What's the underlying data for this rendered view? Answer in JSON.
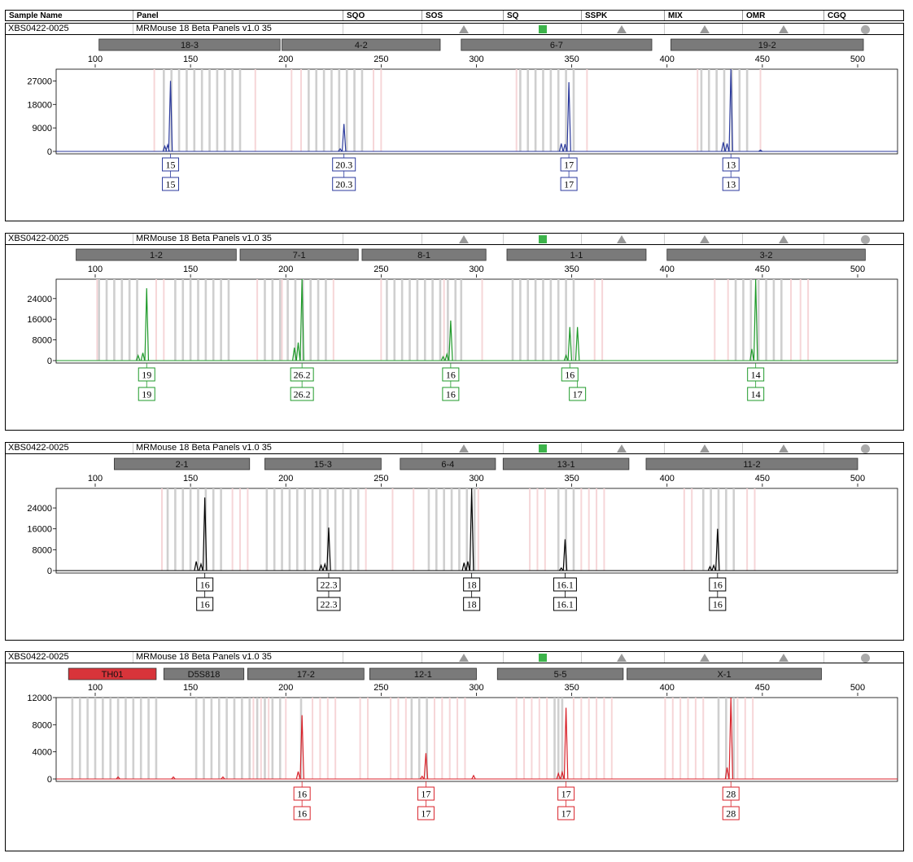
{
  "header": {
    "columns": [
      "Sample Name",
      "Panel",
      "SQO",
      "SOS",
      "SQ",
      "SSPK",
      "MIX",
      "OMR",
      "CGQ"
    ]
  },
  "flag_colors": {
    "triangle": "#999999",
    "square": "#3cb34a",
    "circle": "#aaaaaa"
  },
  "chart_data": [
    {
      "type": "line",
      "dye": "blue",
      "color": "#2b3a9c",
      "sample_name": "XBS0422-0025",
      "panel_name": "MRMouse 18 Beta  Panels  v1.0  35",
      "x_ticks": [
        100,
        150,
        200,
        250,
        300,
        350,
        400,
        450,
        500
      ],
      "xlim": [
        83,
        521
      ],
      "y_ticks": [
        0,
        9000,
        18000,
        27000
      ],
      "y_tick_labels": [
        "0",
        "9000",
        "18000",
        "27000"
      ],
      "ylim": [
        0,
        31500
      ],
      "markers": [
        {
          "label": "18-3",
          "start": 102,
          "end": 197,
          "highlight": false
        },
        {
          "label": "4-2",
          "start": 198,
          "end": 281,
          "highlight": false
        },
        {
          "label": "6-7",
          "start": 292,
          "end": 392,
          "highlight": false
        },
        {
          "label": "19-2",
          "start": 402,
          "end": 503,
          "highlight": false
        }
      ],
      "bins_gray": [
        136,
        140,
        144,
        148,
        152,
        156,
        160,
        164,
        168,
        172,
        176,
        212,
        216,
        220,
        224,
        228,
        232,
        236,
        240,
        323,
        327,
        331,
        335,
        339,
        343,
        347,
        351,
        418,
        422,
        426,
        430,
        434,
        438,
        442
      ],
      "bins_pink": [
        131,
        152,
        184,
        203,
        208,
        246,
        250,
        321,
        358,
        416,
        449
      ],
      "peaks": [
        {
          "x": 139.5,
          "h": 27000
        },
        {
          "x": 138,
          "h": 2500
        },
        {
          "x": 136.5,
          "h": 2000
        },
        {
          "x": 230.5,
          "h": 10500
        },
        {
          "x": 228.5,
          "h": 1000
        },
        {
          "x": 348.5,
          "h": 26500
        },
        {
          "x": 346.5,
          "h": 2800
        },
        {
          "x": 344.5,
          "h": 3000
        },
        {
          "x": 433.5,
          "h": 31500
        },
        {
          "x": 431.5,
          "h": 3000
        },
        {
          "x": 429.5,
          "h": 3500
        },
        {
          "x": 449,
          "h": 500
        }
      ],
      "calls": [
        {
          "x": 139.5,
          "allele1": "15",
          "allele2": "15",
          "x2": 139.5
        },
        {
          "x": 230.5,
          "allele1": "20.3",
          "allele2": "20.3",
          "x2": 230.5
        },
        {
          "x": 348.5,
          "allele1": "17",
          "allele2": "17",
          "x2": 348.5
        },
        {
          "x": 433.5,
          "allele1": "13",
          "allele2": "13",
          "x2": 433.5
        }
      ]
    },
    {
      "type": "line",
      "dye": "green",
      "color": "#1f9a2a",
      "sample_name": "XBS0422-0025",
      "panel_name": "MRMouse 18 Beta  Panels  v1.0  35",
      "x_ticks": [
        100,
        150,
        200,
        250,
        300,
        350,
        400,
        450,
        500
      ],
      "xlim": [
        83,
        521
      ],
      "y_ticks": [
        0,
        8000,
        16000,
        24000
      ],
      "y_tick_labels": [
        "0",
        "8000",
        "16000",
        "24000"
      ],
      "ylim": [
        0,
        31500
      ],
      "markers": [
        {
          "label": "1-2",
          "start": 90,
          "end": 174,
          "highlight": false
        },
        {
          "label": "7-1",
          "start": 176,
          "end": 238,
          "highlight": false
        },
        {
          "label": "8-1",
          "start": 240,
          "end": 305,
          "highlight": false
        },
        {
          "label": "1-1",
          "start": 316,
          "end": 389,
          "highlight": false
        },
        {
          "label": "3-2",
          "start": 400,
          "end": 504,
          "highlight": false
        }
      ],
      "bins_gray": [
        102,
        106,
        110,
        114,
        118,
        122,
        142,
        146,
        150,
        154,
        158,
        162,
        166,
        170,
        189,
        193,
        197,
        201,
        205,
        209,
        213,
        217,
        221,
        253,
        257,
        261,
        265,
        269,
        273,
        277,
        281,
        285,
        289,
        292,
        319,
        323,
        327,
        331,
        335,
        339,
        343,
        347,
        351,
        436,
        440,
        444,
        448,
        452,
        456,
        460
      ],
      "bins_pink": [
        101,
        132,
        136,
        185,
        198,
        225,
        250,
        283,
        303,
        362,
        366,
        425,
        432,
        465,
        470,
        474
      ],
      "peaks": [
        {
          "x": 127,
          "h": 28000
        },
        {
          "x": 125,
          "h": 3000
        },
        {
          "x": 122.5,
          "h": 2000
        },
        {
          "x": 208.5,
          "h": 31500
        },
        {
          "x": 206.5,
          "h": 7000
        },
        {
          "x": 204.5,
          "h": 5000
        },
        {
          "x": 286.5,
          "h": 15500
        },
        {
          "x": 284.5,
          "h": 2500
        },
        {
          "x": 282.5,
          "h": 1500
        },
        {
          "x": 349,
          "h": 13000
        },
        {
          "x": 353,
          "h": 13000
        },
        {
          "x": 347,
          "h": 2000
        },
        {
          "x": 446.5,
          "h": 31500
        },
        {
          "x": 444.5,
          "h": 4500
        }
      ],
      "calls": [
        {
          "x": 127,
          "allele1": "19",
          "allele2": "19",
          "x2": 127
        },
        {
          "x": 208.5,
          "allele1": "26.2",
          "allele2": "26.2",
          "x2": 208.5
        },
        {
          "x": 286.5,
          "allele1": "16",
          "allele2": "16",
          "x2": 286.5
        },
        {
          "x": 349,
          "allele1": "16",
          "allele2": "17",
          "x2": 353
        },
        {
          "x": 446.5,
          "allele1": "14",
          "allele2": "14",
          "x2": 446.5
        }
      ]
    },
    {
      "type": "line",
      "dye": "black",
      "color": "#000000",
      "sample_name": "XBS0422-0025",
      "panel_name": "MRMouse 18 Beta  Panels  v1.0  35",
      "x_ticks": [
        100,
        150,
        200,
        250,
        300,
        350,
        400,
        450,
        500
      ],
      "xlim": [
        83,
        521
      ],
      "y_ticks": [
        0,
        8000,
        16000,
        24000
      ],
      "y_tick_labels": [
        "0",
        "8000",
        "16000",
        "24000"
      ],
      "ylim": [
        0,
        31500
      ],
      "markers": [
        {
          "label": "2-1",
          "start": 110,
          "end": 181,
          "highlight": false
        },
        {
          "label": "15-3",
          "start": 189,
          "end": 250,
          "highlight": false
        },
        {
          "label": "6-4",
          "start": 260,
          "end": 310,
          "highlight": false
        },
        {
          "label": "13-1",
          "start": 314,
          "end": 380,
          "highlight": false
        },
        {
          "label": "11-2",
          "start": 389,
          "end": 500,
          "highlight": false
        }
      ],
      "bins_gray": [
        138,
        142,
        146,
        150,
        154,
        158,
        162,
        166,
        190,
        194,
        198,
        202,
        206,
        210,
        214,
        218,
        222,
        226,
        230,
        234,
        238,
        275,
        279,
        283,
        287,
        291,
        295,
        299,
        343,
        347,
        351,
        419,
        423,
        427,
        431,
        435
      ],
      "bins_pink": [
        135,
        172,
        176,
        180,
        214,
        242,
        256,
        267,
        301,
        328,
        332,
        336,
        355,
        359,
        363,
        367,
        409,
        413,
        442,
        446
      ],
      "peaks": [
        {
          "x": 157.5,
          "h": 28000
        },
        {
          "x": 155.5,
          "h": 2500
        },
        {
          "x": 153,
          "h": 3500
        },
        {
          "x": 222.5,
          "h": 16500
        },
        {
          "x": 220.5,
          "h": 2500
        },
        {
          "x": 218.5,
          "h": 2000
        },
        {
          "x": 297.5,
          "h": 31500
        },
        {
          "x": 295.5,
          "h": 3500
        },
        {
          "x": 293.5,
          "h": 3000
        },
        {
          "x": 346.5,
          "h": 12000
        },
        {
          "x": 344.5,
          "h": 1000
        },
        {
          "x": 426.5,
          "h": 16000
        },
        {
          "x": 424.5,
          "h": 2000
        },
        {
          "x": 422.5,
          "h": 1500
        }
      ],
      "calls": [
        {
          "x": 157.5,
          "allele1": "16",
          "allele2": "16",
          "x2": 157.5
        },
        {
          "x": 222.5,
          "allele1": "22.3",
          "allele2": "22.3",
          "x2": 222.5
        },
        {
          "x": 297.5,
          "allele1": "18",
          "allele2": "18",
          "x2": 297.5
        },
        {
          "x": 346.5,
          "allele1": "16.1",
          "allele2": "16.1",
          "x2": 346.5
        },
        {
          "x": 426.5,
          "allele1": "16",
          "allele2": "16",
          "x2": 426.5
        }
      ]
    },
    {
      "type": "line",
      "dye": "red",
      "color": "#d8222a",
      "sample_name": "XBS0422-0025",
      "panel_name": "MRMouse 18 Beta  Panels  v1.0  35",
      "x_ticks": [
        100,
        150,
        200,
        250,
        300,
        350,
        400,
        450,
        500
      ],
      "xlim": [
        83,
        521
      ],
      "y_ticks": [
        0,
        4000,
        8000,
        12000
      ],
      "y_tick_labels": [
        "0",
        "4000",
        "8000",
        "12000"
      ],
      "ylim": [
        0,
        12000
      ],
      "markers": [
        {
          "label": "TH01",
          "start": 86,
          "end": 132,
          "highlight": true
        },
        {
          "label": "D5S818",
          "start": 136,
          "end": 178,
          "highlight": false
        },
        {
          "label": "17-2",
          "start": 180,
          "end": 241,
          "highlight": false
        },
        {
          "label": "12-1",
          "start": 244,
          "end": 300,
          "highlight": false
        },
        {
          "label": "5-5",
          "start": 311,
          "end": 377,
          "highlight": false
        },
        {
          "label": "X-1",
          "start": 379,
          "end": 481,
          "highlight": false
        }
      ],
      "bins_gray": [
        88,
        92,
        96,
        100,
        104,
        108,
        112,
        116,
        120,
        124,
        128,
        132,
        153,
        157,
        161,
        165,
        169,
        173,
        177,
        181,
        185,
        189,
        193,
        197,
        208,
        266,
        270,
        274,
        341,
        343,
        345,
        427,
        431,
        435
      ],
      "bins_pink": [
        183,
        187,
        191,
        200,
        214,
        218,
        222,
        226,
        239,
        243,
        255,
        259,
        263,
        278,
        282,
        286,
        290,
        294,
        321,
        325,
        329,
        333,
        337,
        351,
        355,
        359,
        363,
        367,
        371,
        399,
        403,
        407,
        411,
        415,
        419,
        437,
        441,
        445
      ],
      "peaks": [
        {
          "x": 208.5,
          "h": 9400
        },
        {
          "x": 206.5,
          "h": 1100
        },
        {
          "x": 273.5,
          "h": 3800
        },
        {
          "x": 271.5,
          "h": 400
        },
        {
          "x": 298.5,
          "h": 500
        },
        {
          "x": 347,
          "h": 10500
        },
        {
          "x": 345,
          "h": 1000
        },
        {
          "x": 343,
          "h": 800
        },
        {
          "x": 433.5,
          "h": 12000
        },
        {
          "x": 431.5,
          "h": 1700
        },
        {
          "x": 112,
          "h": 300
        },
        {
          "x": 141,
          "h": 300
        },
        {
          "x": 167,
          "h": 300
        }
      ],
      "calls": [
        {
          "x": 208.5,
          "allele1": "16",
          "allele2": "16",
          "x2": 208.5
        },
        {
          "x": 273.5,
          "allele1": "17",
          "allele2": "17",
          "x2": 273.5
        },
        {
          "x": 347,
          "allele1": "17",
          "allele2": "17",
          "x2": 347
        },
        {
          "x": 433.5,
          "allele1": "28",
          "allele2": "28",
          "x2": 433.5
        }
      ]
    }
  ]
}
